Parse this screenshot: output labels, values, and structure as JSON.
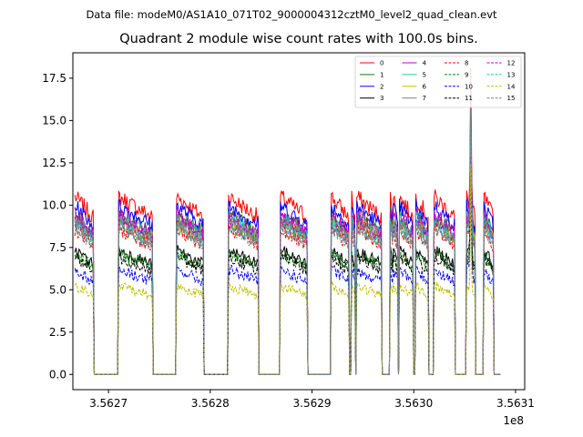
{
  "figure": {
    "suptitle": "Data file: modeM0/AS1A10_071T02_9000004312cztM0_level2_quad_clean.evt",
    "title": "Quadrant 2 module wise count rates with 100.0s bins."
  },
  "chart_data": {
    "type": "line",
    "title": "Quadrant 2 module wise count rates with 100.0s bins.",
    "xlabel": "",
    "ylabel": "",
    "x_offset_label": "1e8",
    "xlim": [
      356266500,
      356310900
    ],
    "ylim": [
      -0.9,
      19.0
    ],
    "x_ticks": [
      356270000,
      356280000,
      356290000,
      356300000,
      356310000
    ],
    "x_tick_labels": [
      "3.5627",
      "3.5628",
      "3.5629",
      "3.5630",
      "3.5631"
    ],
    "y_ticks": [
      0.0,
      2.5,
      5.0,
      7.5,
      10.0,
      12.5,
      15.0,
      17.5
    ],
    "y_tick_labels": [
      "0.0",
      "2.5",
      "5.0",
      "7.5",
      "10.0",
      "12.5",
      "15.0",
      "17.5"
    ],
    "grid": false,
    "legend_position": "top-right",
    "legend_columns": 4,
    "active_intervals": [
      [
        356266700,
        356268500
      ],
      [
        356271000,
        356274300
      ],
      [
        356276700,
        356279300
      ],
      [
        356281800,
        356284700
      ],
      [
        356286900,
        356289500
      ],
      [
        356291900,
        356293600
      ],
      [
        356293900,
        356294200
      ],
      [
        356294400,
        356296800
      ],
      [
        356297700,
        356297900
      ],
      [
        356298000,
        356298400
      ],
      [
        356298600,
        356299900
      ],
      [
        356300200,
        356301400
      ],
      [
        356302000,
        356304000
      ],
      [
        356305200,
        356306000
      ],
      [
        356306900,
        356307800
      ]
    ],
    "spike": {
      "x": 356305600,
      "peak_values": [
        18.1,
        16.5,
        14.8,
        16.0,
        17.2,
        15.5,
        13.2,
        15.3,
        16.0,
        15.2,
        12.4,
        15.5,
        16.2,
        15.6,
        12.4,
        16.0
      ]
    },
    "series": [
      {
        "name": "0",
        "color": "#ff0000",
        "linestyle": "solid",
        "level": 10.0,
        "noise": 0.5
      },
      {
        "name": "1",
        "color": "#008000",
        "linestyle": "solid",
        "level": 9.0,
        "noise": 0.45
      },
      {
        "name": "2",
        "color": "#0000ff",
        "linestyle": "solid",
        "level": 9.5,
        "noise": 0.45
      },
      {
        "name": "3",
        "color": "#000000",
        "linestyle": "solid",
        "level": 7.0,
        "noise": 0.35
      },
      {
        "name": "4",
        "color": "#bf00bf",
        "linestyle": "solid",
        "level": 9.0,
        "noise": 0.45
      },
      {
        "name": "5",
        "color": "#1fbfbf",
        "linestyle": "solid",
        "level": 8.8,
        "noise": 0.45
      },
      {
        "name": "6",
        "color": "#bfbf00",
        "linestyle": "solid",
        "level": 8.6,
        "noise": 0.45
      },
      {
        "name": "7",
        "color": "#7f7f7f",
        "linestyle": "solid",
        "level": 8.7,
        "noise": 0.45
      },
      {
        "name": "8",
        "color": "#ff0000",
        "linestyle": "dashed",
        "level": 8.2,
        "noise": 0.45
      },
      {
        "name": "9",
        "color": "#008000",
        "linestyle": "dashed",
        "level": 6.8,
        "noise": 0.35
      },
      {
        "name": "10",
        "color": "#0000ff",
        "linestyle": "dashed",
        "level": 5.9,
        "noise": 0.35
      },
      {
        "name": "11",
        "color": "#000000",
        "linestyle": "dashed",
        "level": 6.6,
        "noise": 0.35
      },
      {
        "name": "12",
        "color": "#bf00bf",
        "linestyle": "dashed",
        "level": 8.8,
        "noise": 0.45
      },
      {
        "name": "13",
        "color": "#1fbfbf",
        "linestyle": "dashed",
        "level": 8.4,
        "noise": 0.45
      },
      {
        "name": "14",
        "color": "#bfbf00",
        "linestyle": "dashed",
        "level": 5.0,
        "noise": 0.3
      },
      {
        "name": "15",
        "color": "#7f7f7f",
        "linestyle": "dashed",
        "level": 8.3,
        "noise": 0.45
      }
    ]
  }
}
